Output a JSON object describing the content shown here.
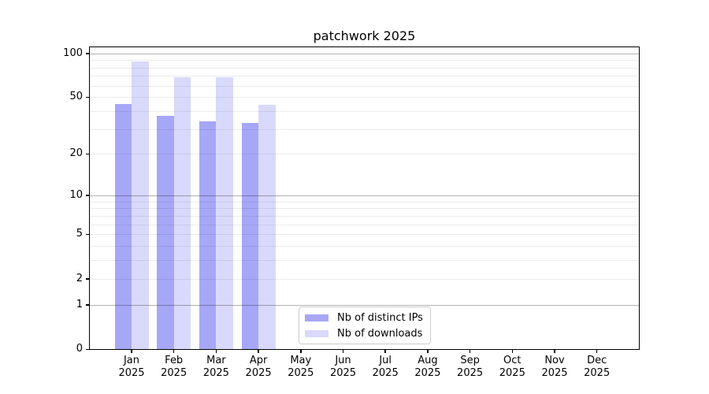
{
  "chart_data": {
    "type": "bar",
    "title": "patchwork 2025",
    "categories": [
      "Jan",
      "Feb",
      "Mar",
      "Apr",
      "May",
      "Jun",
      "Jul",
      "Aug",
      "Sep",
      "Oct",
      "Nov",
      "Dec"
    ],
    "year_label": "2025",
    "series": [
      {
        "name": "Nb of distinct IPs",
        "color": "#a7a7f7",
        "values": [
          45,
          37,
          34,
          33,
          0,
          0,
          0,
          0,
          0,
          0,
          0,
          0
        ]
      },
      {
        "name": "Nb of downloads",
        "color": "#d9d9fb",
        "values": [
          88,
          69,
          69,
          44,
          0,
          0,
          0,
          0,
          0,
          0,
          0,
          0
        ]
      }
    ],
    "xlabel": "",
    "ylabel": "",
    "yscale": "log10(1+y)",
    "ylim": [
      0,
      110
    ],
    "yticks": [
      100,
      50,
      20,
      10,
      5,
      2,
      1,
      0
    ],
    "grid": {
      "major_values": [
        1,
        10,
        100
      ],
      "minor_values": [
        2,
        3,
        4,
        5,
        6,
        7,
        8,
        9,
        20,
        30,
        40,
        50,
        60,
        70,
        80,
        90
      ],
      "major_color": "rgba(0,0,0,0.30)",
      "minor_color": "rgba(0,0,0,0.08)"
    },
    "legend_position": "lower center inside",
    "axis_color": "#000000",
    "background_color": "#ffffff"
  }
}
